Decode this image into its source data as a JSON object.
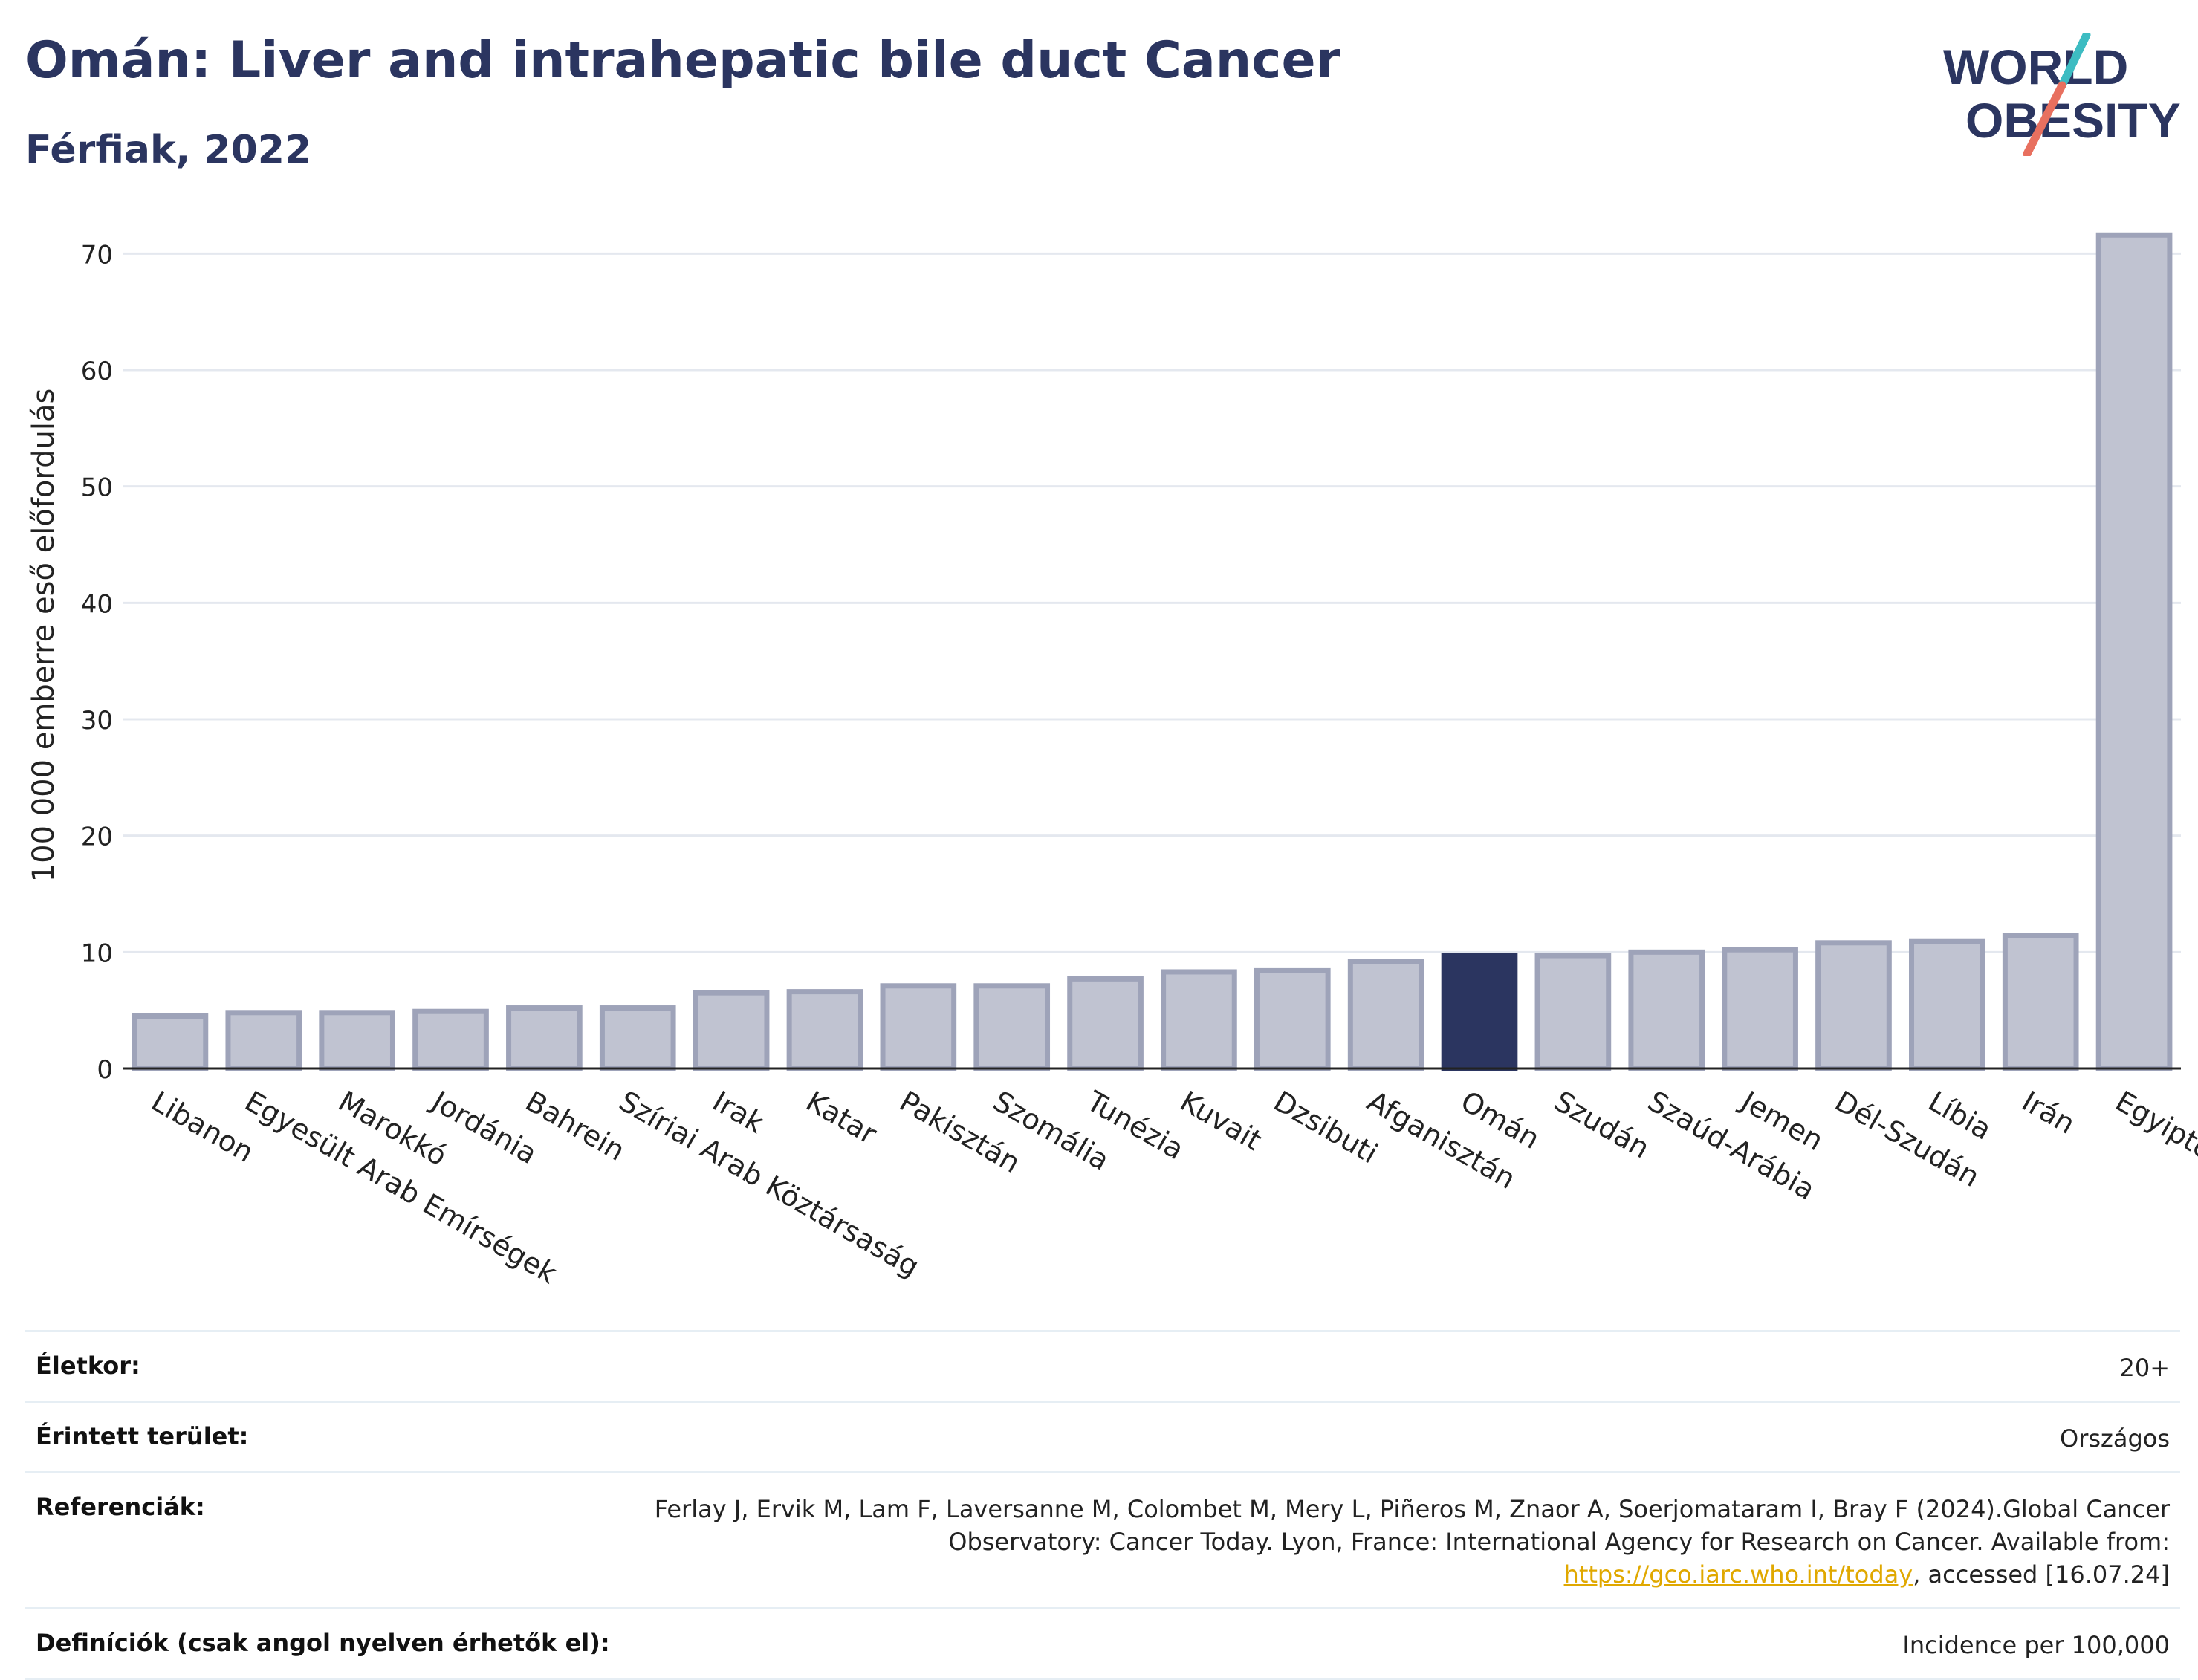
{
  "header": {
    "title": "Omán: Liver and intrahepatic bile duct Cancer",
    "subtitle": "Férfiak, 2022"
  },
  "logo": {
    "line1": "WORLD",
    "line2": "OBESITY"
  },
  "chart_data": {
    "type": "bar",
    "ylabel": "100 000 emberre eső előfordulás",
    "ylim": [
      0,
      72
    ],
    "yticks": [
      0,
      10,
      20,
      30,
      40,
      50,
      60,
      70
    ],
    "grid": true,
    "highlight": "Omán",
    "colors": {
      "bar": "#c0c3d1",
      "bar_edge": "#9ea3b9",
      "highlight": "#2b3560",
      "grid": "#e4e8ef"
    },
    "categories": [
      "Libanon",
      "Egyesült Arab Emírségek",
      "Marokkó",
      "Jordánia",
      "Bahrein",
      "Szíriai Arab Köztársaság",
      "Irak",
      "Katar",
      "Pakisztán",
      "Szomália",
      "Tunézia",
      "Kuvait",
      "Dzsibuti",
      "Afganisztán",
      "Omán",
      "Szudán",
      "Szaúd-Arábia",
      "Jemen",
      "Dél-Szudán",
      "Líbia",
      "Irán",
      "Egyiptom"
    ],
    "values": [
      4.5,
      4.8,
      4.8,
      4.9,
      5.2,
      5.2,
      6.5,
      6.6,
      7.1,
      7.1,
      7.7,
      8.3,
      8.4,
      9.2,
      9.7,
      9.7,
      10.0,
      10.2,
      10.8,
      10.9,
      11.4,
      71.6
    ]
  },
  "meta": {
    "age_label": "Életkor:",
    "age_value": "20+",
    "area_label": "Érintett terület:",
    "area_value": "Országos",
    "ref_label": "Referenciák:",
    "ref_text_1": "Ferlay J, Ervik M, Lam F, Laversanne M, Colombet M, Mery L, Piñeros M, Znaor A, Soerjomataram I, Bray F (2024).Global Cancer Observatory: Cancer Today. Lyon, France: International Agency for Research on Cancer. Available from: ",
    "ref_link": "https://gco.iarc.who.int/today",
    "ref_text_2": ", accessed [16.07.24]",
    "def_label": "Definíciók (csak angol nyelven érhetők el):",
    "def_value": "Incidence per 100,000"
  }
}
